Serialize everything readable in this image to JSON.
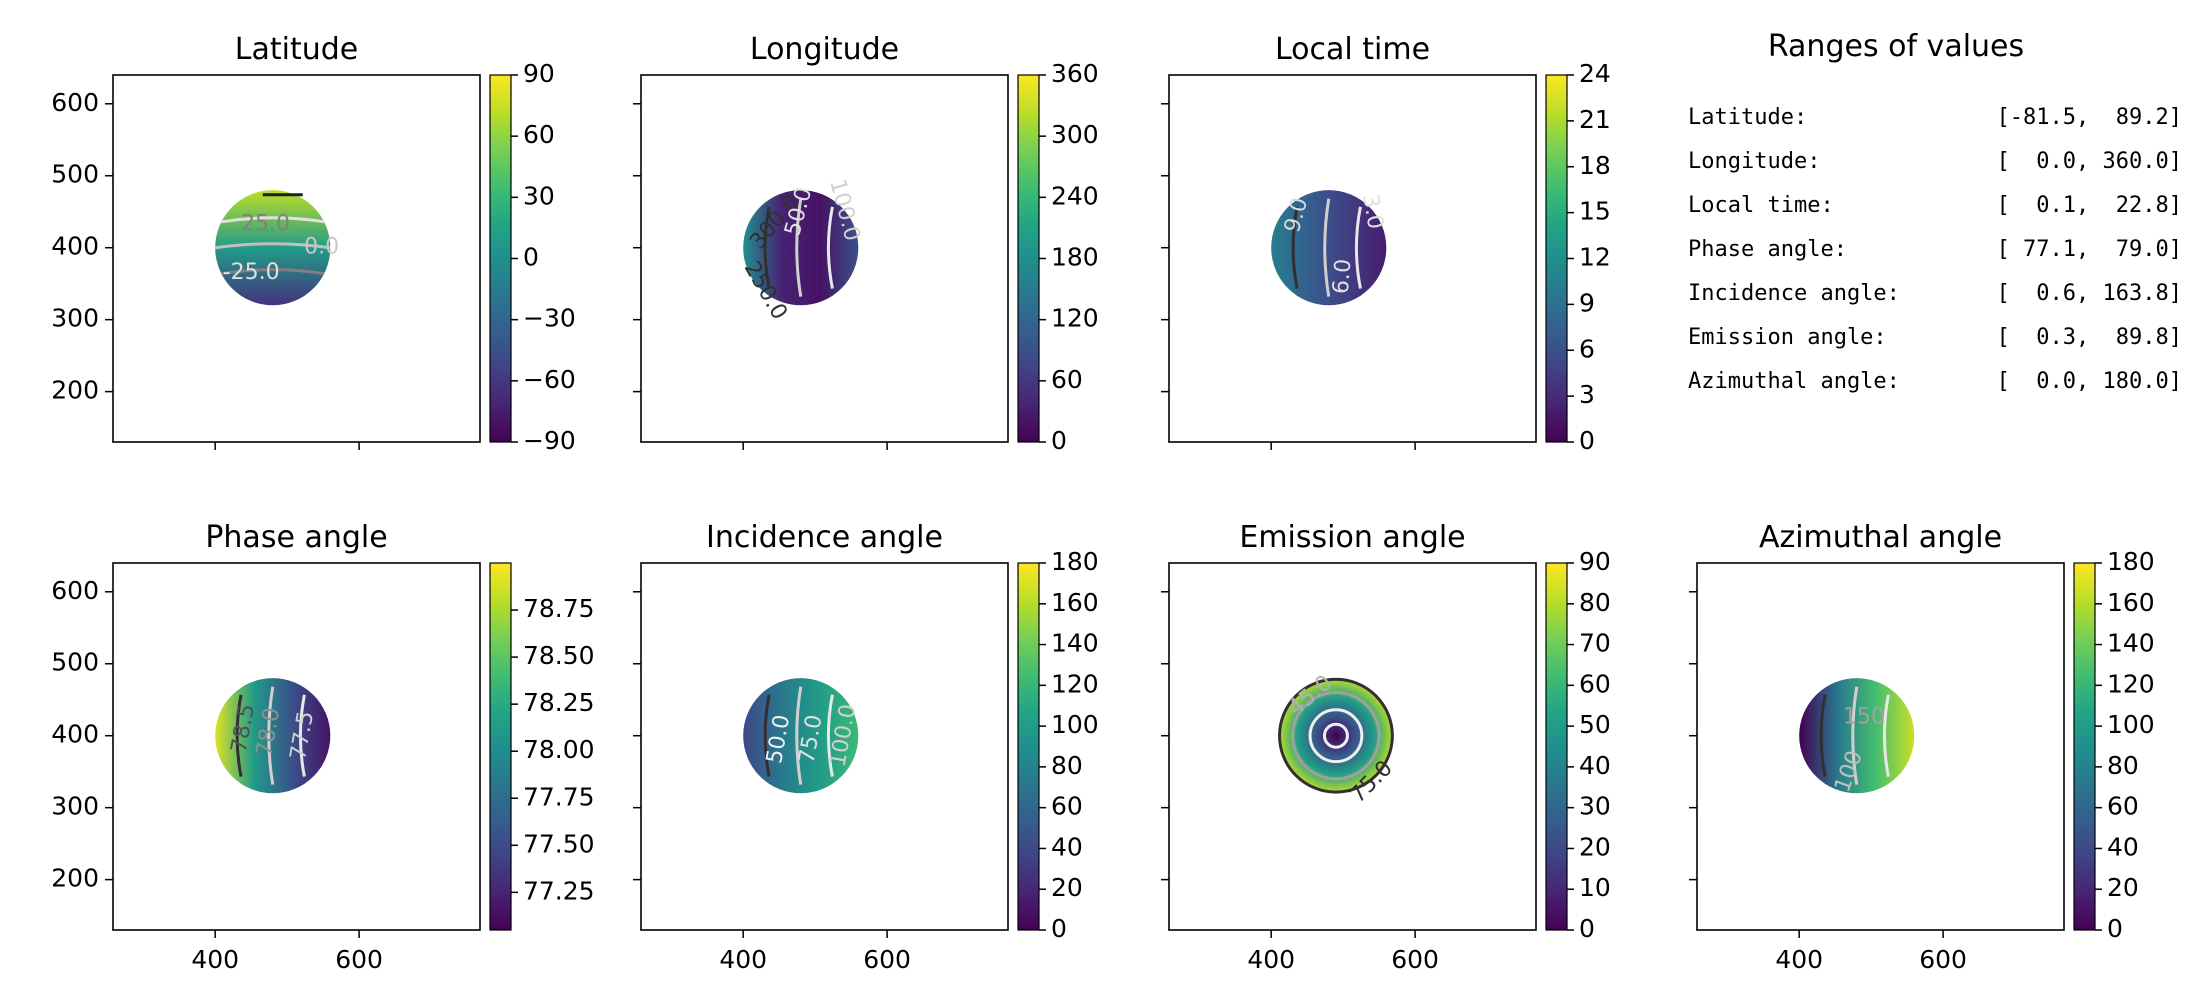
{
  "chart_data": [
    {
      "type": "heatmap",
      "title": "Latitude",
      "colorbar_ticks": [
        "90",
        "60",
        "30",
        "0",
        "−30",
        "−60",
        "−90"
      ],
      "clim": [
        -90,
        90
      ],
      "xlim": [
        258,
        768
      ],
      "ylim": [
        130,
        640
      ],
      "xticks": [
        400,
        600
      ],
      "yticks": [
        200,
        300,
        400,
        500,
        600
      ],
      "show_xticklabels": false,
      "show_yticklabels": true,
      "colormap": "viridis",
      "disk": {
        "cx": 480,
        "cy": 400,
        "r": 80
      },
      "gradient": {
        "dir": "v",
        "stops": [
          0.15,
          0.55,
          0.9
        ]
      },
      "contour_labels": [
        {
          "text": "25.0",
          "x": 470,
          "y": 432,
          "rot": 0,
          "color": "#808080"
        },
        {
          "text": "0.0",
          "x": 548,
          "y": 400,
          "rot": 0,
          "color": "#c8c8c8"
        },
        {
          "text": "-25.0",
          "x": 450,
          "y": 365,
          "rot": 0,
          "color": "#e0e0e0"
        }
      ]
    },
    {
      "type": "heatmap",
      "title": "Longitude",
      "colorbar_ticks": [
        "360",
        "300",
        "240",
        "180",
        "120",
        "60",
        "0"
      ],
      "clim": [
        0,
        360
      ],
      "xlim": [
        258,
        768
      ],
      "ylim": [
        130,
        640
      ],
      "xticks": [
        400,
        600
      ],
      "yticks": [
        200,
        300,
        400,
        500,
        600
      ],
      "show_xticklabels": false,
      "show_yticklabels": false,
      "colormap": "viridis",
      "disk": {
        "cx": 480,
        "cy": 400,
        "r": 80
      },
      "gradient": {
        "dir": "h",
        "stops": [
          0.5,
          0.1,
          0.05,
          0.25
        ]
      },
      "contour_labels": [
        {
          "text": "300.0",
          "x": 445,
          "y": 435,
          "rot": -50,
          "color": "#303030"
        },
        {
          "text": "50.0",
          "x": 478,
          "y": 450,
          "rot": -75,
          "color": "#e0e0e0"
        },
        {
          "text": "100.0",
          "x": 540,
          "y": 452,
          "rot": 75,
          "color": "#d0d0d0"
        },
        {
          "text": "250.0",
          "x": 430,
          "y": 340,
          "rot": 60,
          "color": "#303030"
        }
      ]
    },
    {
      "type": "heatmap",
      "title": "Local time",
      "colorbar_ticks": [
        "24",
        "21",
        "18",
        "15",
        "12",
        "9",
        "6",
        "3",
        "0"
      ],
      "clim": [
        0,
        24
      ],
      "xlim": [
        258,
        768
      ],
      "ylim": [
        130,
        640
      ],
      "xticks": [
        400,
        600
      ],
      "yticks": [
        200,
        300,
        400,
        500,
        600
      ],
      "show_xticklabels": false,
      "show_yticklabels": false,
      "colormap": "viridis",
      "disk": {
        "cx": 480,
        "cy": 400,
        "r": 80
      },
      "gradient": {
        "dir": "h",
        "stops": [
          0.42,
          0.3,
          0.18,
          0.08
        ]
      },
      "contour_labels": [
        {
          "text": "9.0",
          "x": 436,
          "y": 445,
          "rot": -75,
          "color": "#d8d8d8"
        },
        {
          "text": "6.0",
          "x": 500,
          "y": 360,
          "rot": -85,
          "color": "#e0e0e0"
        },
        {
          "text": "3.0",
          "x": 540,
          "y": 450,
          "rot": 80,
          "color": "#e0e0e0"
        }
      ]
    },
    {
      "type": "heatmap",
      "title": "Phase angle",
      "colorbar_ticks": [
        "78.75",
        "78.50",
        "78.25",
        "78.00",
        "77.75",
        "77.50",
        "77.25"
      ],
      "clim": [
        77.05,
        79.0
      ],
      "xlim": [
        258,
        768
      ],
      "ylim": [
        130,
        640
      ],
      "xticks": [
        400,
        600
      ],
      "yticks": [
        200,
        300,
        400,
        500,
        600
      ],
      "show_xticklabels": true,
      "show_yticklabels": true,
      "colormap": "viridis",
      "disk": {
        "cx": 480,
        "cy": 400,
        "r": 80
      },
      "gradient": {
        "dir": "h",
        "stops": [
          0.95,
          0.55,
          0.25,
          0.05
        ]
      },
      "contour_labels": [
        {
          "text": "78.5",
          "x": 440,
          "y": 410,
          "rot": -80,
          "color": "#505050"
        },
        {
          "text": "78.0",
          "x": 475,
          "y": 405,
          "rot": -80,
          "color": "#909090"
        },
        {
          "text": "77.5",
          "x": 522,
          "y": 400,
          "rot": -80,
          "color": "#d0d0d0"
        }
      ]
    },
    {
      "type": "heatmap",
      "title": "Incidence angle",
      "colorbar_ticks": [
        "180",
        "160",
        "140",
        "120",
        "100",
        "80",
        "60",
        "40",
        "20",
        "0"
      ],
      "clim": [
        0,
        180
      ],
      "xlim": [
        258,
        768
      ],
      "ylim": [
        130,
        640
      ],
      "xticks": [
        400,
        600
      ],
      "yticks": [
        200,
        300,
        400,
        500,
        600
      ],
      "show_xticklabels": true,
      "show_yticklabels": false,
      "colormap": "viridis",
      "disk": {
        "cx": 480,
        "cy": 400,
        "r": 80
      },
      "gradient": {
        "dir": "h",
        "stops": [
          0.22,
          0.4,
          0.55,
          0.68
        ]
      },
      "contour_labels": [
        {
          "text": "50.0",
          "x": 450,
          "y": 395,
          "rot": -80,
          "color": "#f0f0f0"
        },
        {
          "text": "75.0",
          "x": 495,
          "y": 395,
          "rot": -80,
          "color": "#e0e0e0"
        },
        {
          "text": "100.0",
          "x": 540,
          "y": 400,
          "rot": -80,
          "color": "#d0d0d0"
        }
      ]
    },
    {
      "type": "heatmap",
      "title": "Emission angle",
      "colorbar_ticks": [
        "90",
        "80",
        "70",
        "60",
        "50",
        "40",
        "30",
        "20",
        "10",
        "0"
      ],
      "clim": [
        0,
        90
      ],
      "xlim": [
        258,
        768
      ],
      "ylim": [
        130,
        640
      ],
      "xticks": [
        400,
        600
      ],
      "yticks": [
        200,
        300,
        400,
        500,
        600
      ],
      "show_xticklabels": true,
      "show_yticklabels": false,
      "colormap": "viridis",
      "disk": {
        "cx": 490,
        "cy": 400,
        "r": 80
      },
      "gradient": {
        "dir": "r",
        "stops": [
          0.0,
          0.25,
          0.55,
          0.9
        ]
      },
      "contour_labels": [
        {
          "text": "45.0",
          "x": 455,
          "y": 455,
          "rot": -40,
          "color": "#b0b0b0"
        },
        {
          "text": "75.0",
          "x": 540,
          "y": 335,
          "rot": -45,
          "color": "#303030"
        }
      ]
    },
    {
      "type": "heatmap",
      "title": "Azimuthal angle",
      "colorbar_ticks": [
        "180",
        "160",
        "140",
        "120",
        "100",
        "80",
        "60",
        "40",
        "20",
        "0"
      ],
      "clim": [
        0,
        180
      ],
      "xlim": [
        258,
        768
      ],
      "ylim": [
        130,
        640
      ],
      "xticks": [
        400,
        600
      ],
      "yticks": [
        200,
        300,
        400,
        500,
        600
      ],
      "show_xticklabels": true,
      "show_yticklabels": false,
      "colormap": "viridis",
      "disk": {
        "cx": 480,
        "cy": 400,
        "r": 80
      },
      "gradient": {
        "dir": "h",
        "stops": [
          0.0,
          0.4,
          0.7,
          0.92
        ]
      },
      "contour_labels": [
        {
          "text": "150",
          "x": 490,
          "y": 425,
          "rot": 0,
          "color": "#a0a0a0"
        },
        {
          "text": "100",
          "x": 470,
          "y": 350,
          "rot": -70,
          "color": "#c0c0c0"
        }
      ]
    }
  ],
  "ranges": {
    "title": "Ranges of values",
    "rows": [
      {
        "label": "Latitude:",
        "value": "[-81.5,  89.2]"
      },
      {
        "label": "Longitude:",
        "value": "[  0.0, 360.0]"
      },
      {
        "label": "Local time:",
        "value": "[  0.1,  22.8]"
      },
      {
        "label": "Phase angle:",
        "value": "[ 77.1,  79.0]"
      },
      {
        "label": "Incidence angle:",
        "value": "[  0.6, 163.8]"
      },
      {
        "label": "Emission angle:",
        "value": "[  0.3,  89.8]"
      },
      {
        "label": "Azimuthal angle:",
        "value": "[  0.0, 180.0]"
      }
    ]
  }
}
